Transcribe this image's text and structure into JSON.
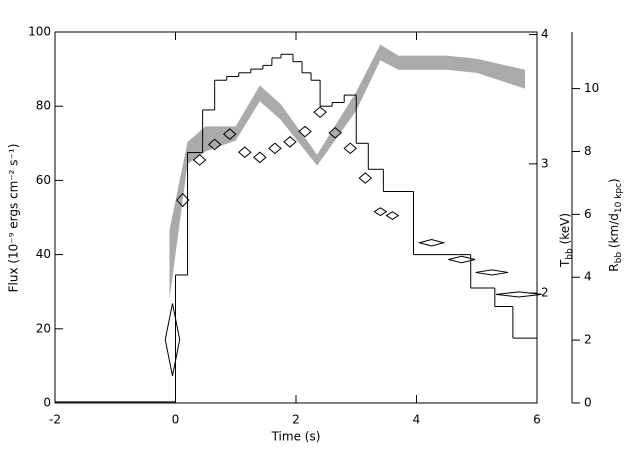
{
  "chart_data": {
    "type": "histogram",
    "xlabel": "Time (s)",
    "ylabel": "Flux (10⁻⁹ ergs cm⁻² s⁻¹)",
    "y2label": {
      "main": "T",
      "sub": "bb",
      "rest": " (keV)"
    },
    "y3label": {
      "main": "R",
      "sub": "bb",
      "rest": " (km/d",
      "sub2": "10 kpc",
      "end": ")"
    },
    "xlim": [
      -2,
      6
    ],
    "xticks": [
      -2,
      0,
      2,
      4,
      6
    ],
    "ylim": [
      0,
      100
    ],
    "yticks": [
      0,
      20,
      40,
      60,
      80,
      100
    ],
    "y2lim": [
      1.15,
      4.02
    ],
    "y2ticks": [
      2,
      3,
      4
    ],
    "y3lim": [
      0,
      11.8
    ],
    "y3ticks": [
      0,
      2,
      4,
      6,
      8,
      10
    ],
    "color": "#000000",
    "bins": [
      -2,
      0,
      0.2,
      0.45,
      0.65,
      0.85,
      1.05,
      1.25,
      1.45,
      1.6,
      1.75,
      1.95,
      2.1,
      2.25,
      2.4,
      2.6,
      2.8,
      3.0,
      3.2,
      3.45,
      3.95,
      4.9,
      5.3,
      5.6,
      6.0
    ],
    "counts": [
      0.3,
      34.5,
      67.5,
      79,
      87,
      88,
      89,
      90,
      91,
      93,
      94,
      92,
      89,
      87,
      80,
      81,
      83,
      70,
      63,
      57,
      40,
      31,
      26,
      17.5
    ],
    "temperature": {
      "type": "scatter",
      "axis": "y2",
      "color": "#000000",
      "x": [
        -0.05,
        0.12,
        0.4,
        0.65,
        0.9,
        1.15,
        1.4,
        1.65,
        1.9,
        2.15,
        2.4,
        2.65,
        2.9,
        3.15,
        3.4,
        3.6,
        4.25,
        4.75,
        5.25,
        5.7
      ],
      "values": [
        1.64,
        2.72,
        3.03,
        3.15,
        3.23,
        3.09,
        3.05,
        3.12,
        3.17,
        3.25,
        3.4,
        3.24,
        3.12,
        2.89,
        2.63,
        2.6,
        2.39,
        2.26,
        2.16,
        1.99
      ],
      "xerr": [
        0.12,
        0.1,
        0.1,
        0.1,
        0.1,
        0.1,
        0.1,
        0.1,
        0.1,
        0.1,
        0.1,
        0.1,
        0.1,
        0.1,
        0.1,
        0.1,
        0.2,
        0.22,
        0.27,
        0.38
      ],
      "yerr": [
        0.28,
        0.05,
        0.04,
        0.04,
        0.04,
        0.04,
        0.04,
        0.04,
        0.04,
        0.04,
        0.04,
        0.04,
        0.04,
        0.04,
        0.03,
        0.03,
        0.025,
        0.025,
        0.02,
        0.02
      ]
    },
    "radius": {
      "type": "area",
      "axis": "y3",
      "color": "#aaaaaa",
      "x": [
        -0.1,
        0.2,
        0.5,
        1.0,
        1.4,
        1.75,
        2.35,
        3.0,
        3.4,
        3.7,
        4.5,
        5.0,
        5.8
      ],
      "lower": [
        3.3,
        7.6,
        8.0,
        8.35,
        9.6,
        9.0,
        7.55,
        9.3,
        10.9,
        10.6,
        10.6,
        10.5,
        10.0
      ],
      "upper": [
        5.5,
        8.3,
        8.8,
        8.8,
        10.1,
        9.5,
        7.9,
        9.9,
        11.4,
        11.05,
        11.05,
        10.95,
        10.6
      ]
    }
  }
}
